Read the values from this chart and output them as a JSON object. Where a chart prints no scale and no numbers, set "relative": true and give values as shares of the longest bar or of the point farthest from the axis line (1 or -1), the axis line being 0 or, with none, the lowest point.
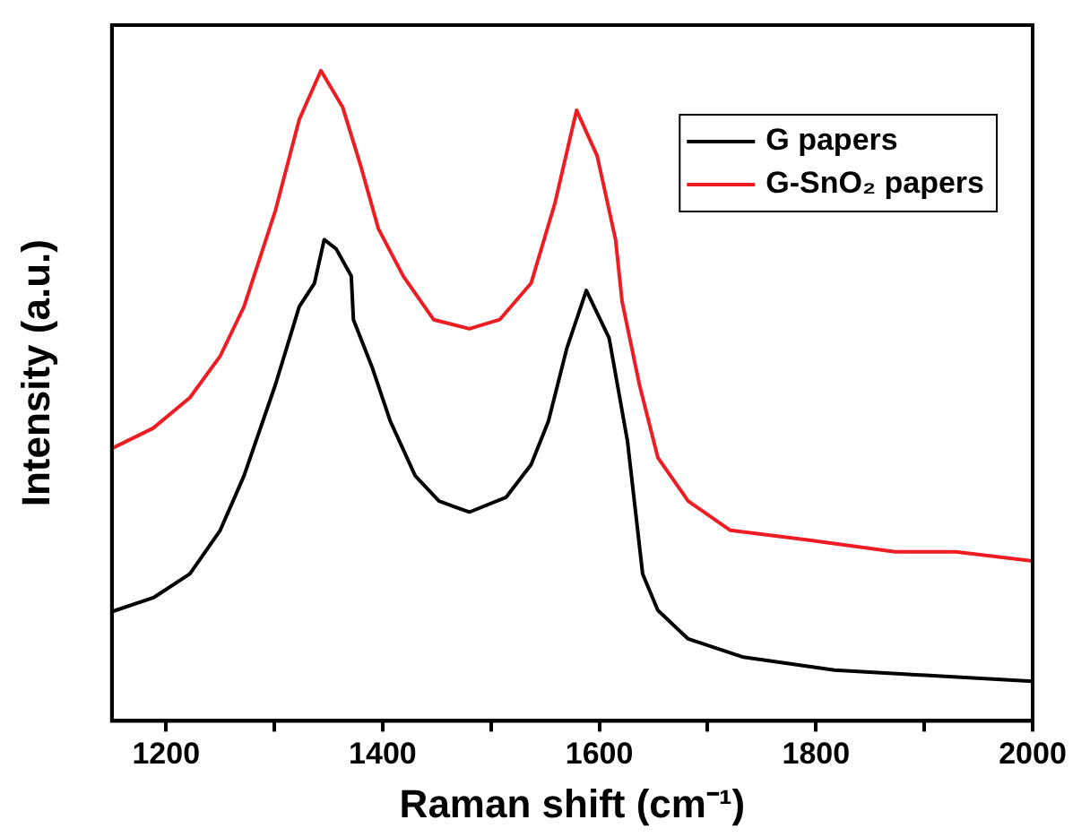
{
  "chart_data": {
    "type": "line",
    "xlabel": "Raman shift (cm⁻¹)",
    "ylabel": "Intensity (a.u.)",
    "relative": true,
    "xlim": [
      1150,
      2000
    ],
    "xticks": [
      1200,
      {
        "value": 1300,
        "label": null
      },
      1400,
      {
        "value": 1500,
        "label": null
      },
      1600,
      {
        "value": 1700,
        "label": null
      },
      1800,
      {
        "value": 1900,
        "label": null
      },
      2000
    ],
    "legend": "top right",
    "grid": false,
    "marker": "none",
    "line_style": "solid",
    "series": [
      {
        "name": "G papers",
        "color": "#000000",
        "x": [
          1150,
          1189,
          1222,
          1250,
          1272,
          1301,
          1323,
          1337,
          1346,
          1357,
          1371,
          1373,
          1390,
          1407,
          1430,
          1452,
          1480,
          1514,
          1537,
          1553,
          1570,
          1588,
          1609,
          1626,
          1640,
          1654,
          1682,
          1733,
          1817,
          1901,
          2000
        ],
        "values": [
          0.168,
          0.19,
          0.226,
          0.293,
          0.377,
          0.517,
          0.637,
          0.673,
          0.74,
          0.726,
          0.684,
          0.617,
          0.545,
          0.461,
          0.377,
          0.338,
          0.321,
          0.344,
          0.394,
          0.461,
          0.573,
          0.662,
          0.589,
          0.43,
          0.226,
          0.17,
          0.126,
          0.098,
          0.078,
          0.07,
          0.061
        ]
      },
      {
        "name": "G-SnO₂ papers",
        "color": "#ee1c23",
        "x": [
          1150,
          1188,
          1222,
          1250,
          1272,
          1301,
          1323,
          1343,
          1363,
          1380,
          1396,
          1419,
          1447,
          1480,
          1508,
          1537,
          1559,
          1579,
          1598,
          1615,
          1621,
          1637,
          1654,
          1682,
          1721,
          1789,
          1873,
          1929,
          2000
        ],
        "values": [
          0.419,
          0.45,
          0.497,
          0.561,
          0.637,
          0.785,
          0.925,
          1,
          0.944,
          0.852,
          0.757,
          0.684,
          0.617,
          0.603,
          0.617,
          0.673,
          0.796,
          0.939,
          0.869,
          0.74,
          0.645,
          0.517,
          0.405,
          0.338,
          0.293,
          0.279,
          0.26,
          0.26,
          0.246
        ]
      }
    ]
  }
}
